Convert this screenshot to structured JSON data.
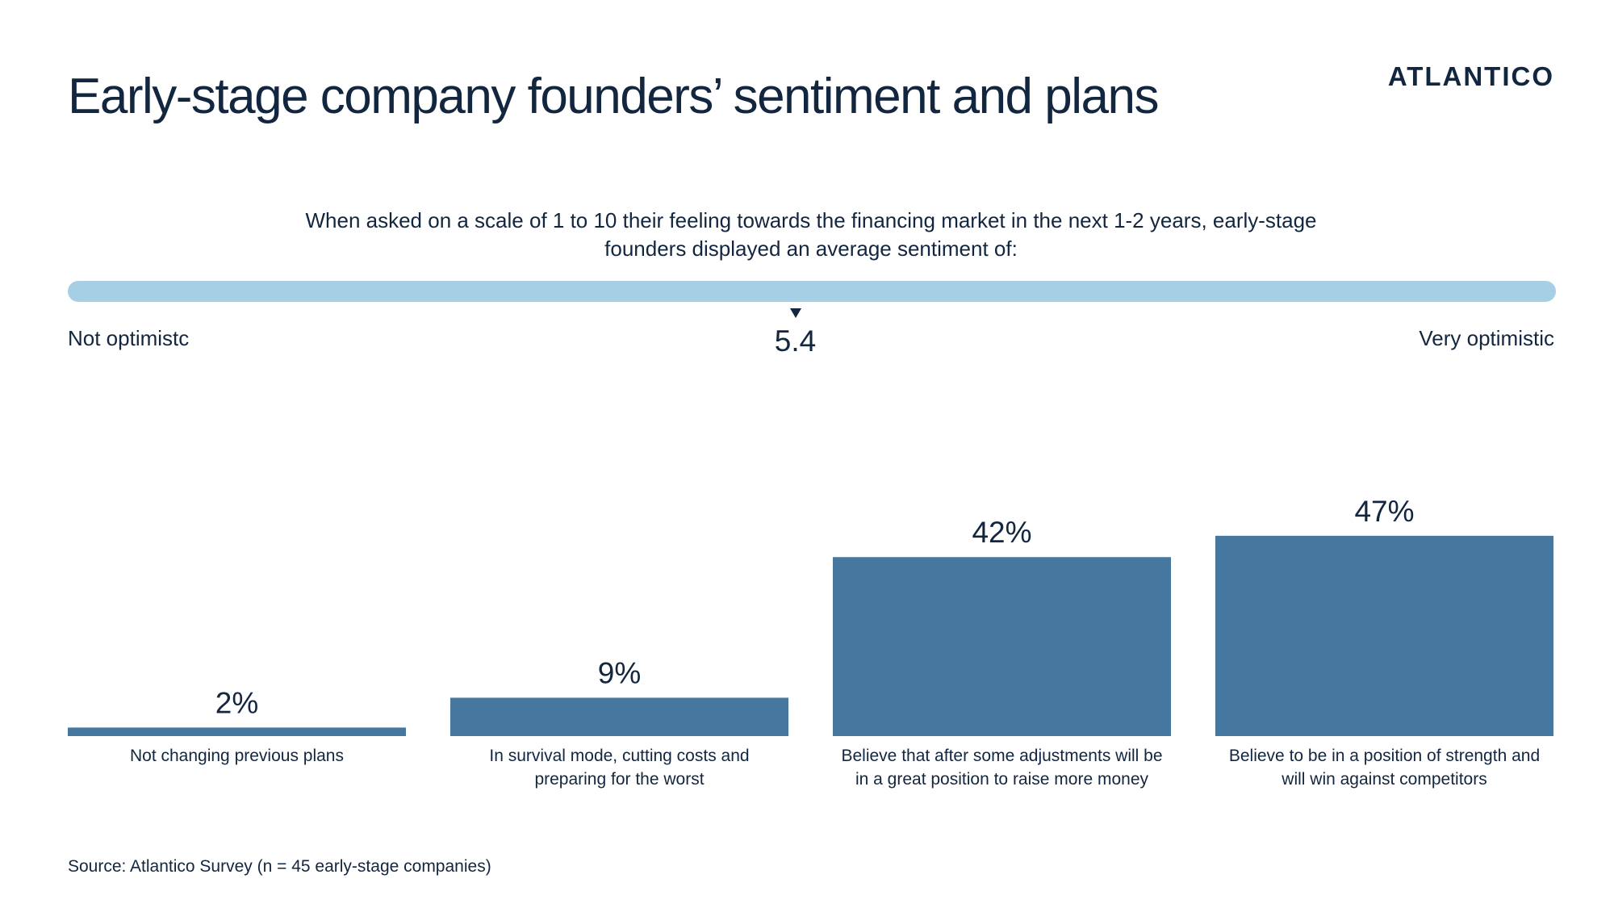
{
  "title": "Early-stage company founders’ sentiment and plans",
  "logo_text": "ATLANTICO",
  "subtitle": "When asked on a scale of 1 to 10 their feeling towards the financing market in the next 1-2 years, early-stage founders displayed an average sentiment of:",
  "sentiment_scale": {
    "min": 1,
    "max": 10,
    "value": 5.4,
    "value_label": "5.4",
    "left_label": "Not optimistc",
    "right_label": "Very optimistic",
    "track_color": "#a6cfe5"
  },
  "chart_data": {
    "type": "bar",
    "categories": [
      [
        "Not changing previous plans"
      ],
      [
        "In survival mode, cutting costs and",
        "preparing for the worst"
      ],
      [
        "Believe that after some adjustments will be",
        "in a great position to raise more money"
      ],
      [
        "Believe to be in a position of strength and",
        "will win against competitors"
      ]
    ],
    "values": [
      2,
      9,
      42,
      47
    ],
    "value_labels": [
      "2%",
      "9%",
      "42%",
      "47%"
    ],
    "unit": "%",
    "ylim": [
      0,
      100
    ],
    "bar_color": "#45779f"
  },
  "source": "Source: Atlantico Survey (n = 45 early-stage companies)"
}
